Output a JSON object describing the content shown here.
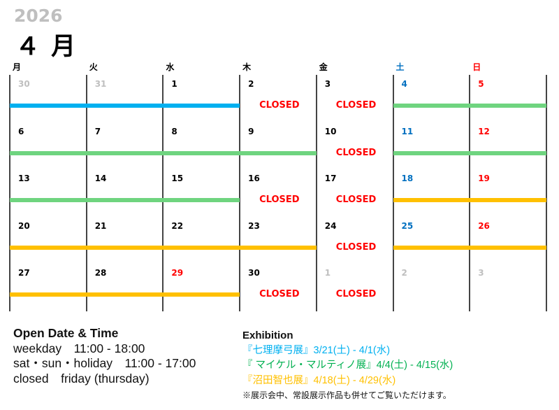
{
  "header": {
    "year": "2026",
    "month": "４ 月"
  },
  "colors": {
    "normal": "#000000",
    "muted": "#bfbfbf",
    "sat": "#0070c0",
    "sun": "#ff0000",
    "holiday": "#ff0000",
    "closed": "#ff0000"
  },
  "weekdays": [
    {
      "label": "月",
      "tone": "normal"
    },
    {
      "label": "火",
      "tone": "normal"
    },
    {
      "label": "水",
      "tone": "normal"
    },
    {
      "label": "木",
      "tone": "normal"
    },
    {
      "label": "金",
      "tone": "normal"
    },
    {
      "label": "土",
      "tone": "sat"
    },
    {
      "label": "日",
      "tone": "sun"
    }
  ],
  "closed_label": "CLOSED",
  "weeks": [
    {
      "days": [
        {
          "n": "30",
          "tone": "muted"
        },
        {
          "n": "31",
          "tone": "muted"
        },
        {
          "n": "1",
          "tone": "normal"
        },
        {
          "n": "2",
          "tone": "normal",
          "closed": true
        },
        {
          "n": "3",
          "tone": "normal",
          "closed": true
        },
        {
          "n": "4",
          "tone": "sat"
        },
        {
          "n": "5",
          "tone": "sun"
        }
      ],
      "bars": [
        {
          "exhibition": 0,
          "from": 0,
          "to": 2
        },
        {
          "exhibition": 1,
          "from": 5,
          "to": 6
        }
      ]
    },
    {
      "days": [
        {
          "n": "6",
          "tone": "normal"
        },
        {
          "n": "7",
          "tone": "normal"
        },
        {
          "n": "8",
          "tone": "normal"
        },
        {
          "n": "9",
          "tone": "normal"
        },
        {
          "n": "10",
          "tone": "normal",
          "closed": true
        },
        {
          "n": "11",
          "tone": "sat"
        },
        {
          "n": "12",
          "tone": "sun"
        }
      ],
      "bars": [
        {
          "exhibition": 1,
          "from": 0,
          "to": 3
        },
        {
          "exhibition": 1,
          "from": 5,
          "to": 6
        }
      ]
    },
    {
      "days": [
        {
          "n": "13",
          "tone": "normal"
        },
        {
          "n": "14",
          "tone": "normal"
        },
        {
          "n": "15",
          "tone": "normal"
        },
        {
          "n": "16",
          "tone": "normal",
          "closed": true
        },
        {
          "n": "17",
          "tone": "normal",
          "closed": true
        },
        {
          "n": "18",
          "tone": "sat"
        },
        {
          "n": "19",
          "tone": "sun"
        }
      ],
      "bars": [
        {
          "exhibition": 1,
          "from": 0,
          "to": 2
        },
        {
          "exhibition": 2,
          "from": 5,
          "to": 6
        }
      ]
    },
    {
      "days": [
        {
          "n": "20",
          "tone": "normal"
        },
        {
          "n": "21",
          "tone": "normal"
        },
        {
          "n": "22",
          "tone": "normal"
        },
        {
          "n": "23",
          "tone": "normal"
        },
        {
          "n": "24",
          "tone": "normal",
          "closed": true
        },
        {
          "n": "25",
          "tone": "sat"
        },
        {
          "n": "26",
          "tone": "sun"
        }
      ],
      "bars": [
        {
          "exhibition": 2,
          "from": 0,
          "to": 3
        },
        {
          "exhibition": 2,
          "from": 5,
          "to": 6
        }
      ]
    },
    {
      "days": [
        {
          "n": "27",
          "tone": "normal"
        },
        {
          "n": "28",
          "tone": "normal"
        },
        {
          "n": "29",
          "tone": "holiday"
        },
        {
          "n": "30",
          "tone": "normal",
          "closed": true
        },
        {
          "n": "1",
          "tone": "muted",
          "closed": true
        },
        {
          "n": "2",
          "tone": "muted"
        },
        {
          "n": "3",
          "tone": "muted"
        }
      ],
      "bars": [
        {
          "exhibition": 2,
          "from": 0,
          "to": 2
        }
      ]
    }
  ],
  "hours": {
    "title": "Open Date & Time",
    "lines": [
      "weekday　11:00 - 18:00",
      "sat・sun・holiday　11:00 - 17:00",
      "closed　friday (thursday)"
    ]
  },
  "exhibitions": {
    "title": "Exhibition",
    "items": [
      {
        "text": "『七理摩弓展』3/21(土) - 4/1(水)",
        "color": "#00b0f0"
      },
      {
        "text": "『 マイケル・マルティノ展』4/4(土) - 4/15(水)",
        "color": "#00b050"
      },
      {
        "text": "『沼田智也展』4/18(土) - 4/29(水)",
        "color": "#ffc000"
      }
    ],
    "bar_colors": [
      "#00b0f0",
      "#6fd47f",
      "#ffc000"
    ],
    "note": "※展示会中、常設展示作品も併せてご覧いただけます。"
  }
}
